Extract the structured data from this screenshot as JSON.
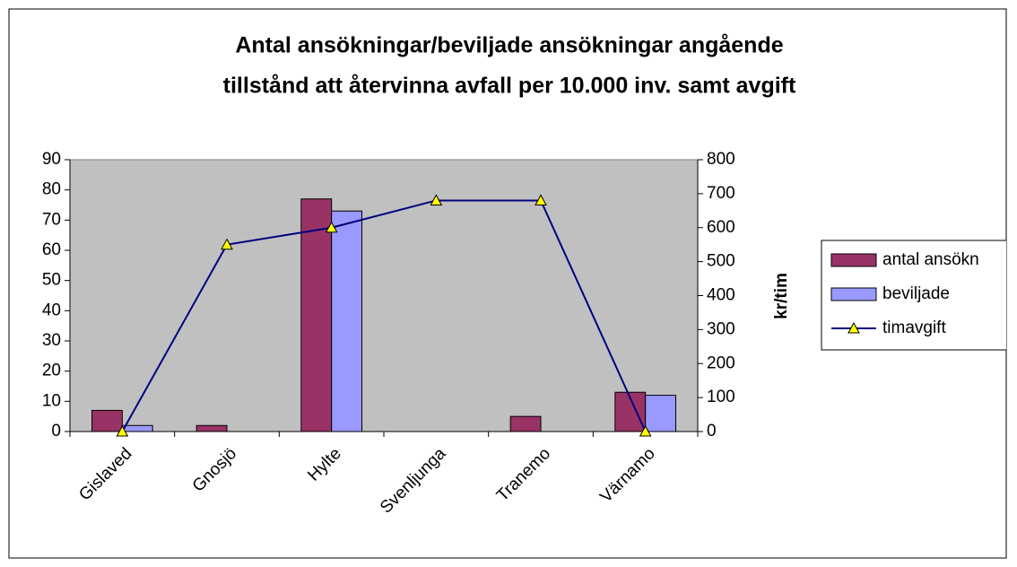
{
  "chart_data": {
    "type": "bar",
    "title": [
      "Antal ansökningar/beviljade ansökningar angående",
      "tillstånd att återvinna avfall per 10.000 inv. samt avgift"
    ],
    "categories": [
      "Gislaved",
      "Gnosjö",
      "Hylte",
      "Svenljunga",
      "Tranemo",
      "Värnamo"
    ],
    "series": [
      {
        "name": "antal ansökn",
        "type": "bar",
        "color": "#993366",
        "values": [
          7,
          2,
          77,
          0,
          5,
          13
        ]
      },
      {
        "name": "beviljade",
        "type": "bar",
        "color": "#9999ff",
        "values": [
          2,
          0,
          73,
          0,
          0,
          12
        ]
      },
      {
        "name": "timavgift",
        "type": "line",
        "axis": "y2",
        "color": "#000080",
        "marker_color": "#ffff00",
        "values": [
          0,
          550,
          600,
          680,
          680,
          0
        ]
      }
    ],
    "ylim": [
      0,
      90
    ],
    "yticks": [
      0,
      10,
      20,
      30,
      40,
      50,
      60,
      70,
      80,
      90
    ],
    "y2lim": [
      0,
      800
    ],
    "y2ticks": [
      0,
      100,
      200,
      300,
      400,
      500,
      600,
      700,
      800
    ],
    "y2label": "kr/tim",
    "legend": "right",
    "plot_background": "#c0c0c0"
  }
}
